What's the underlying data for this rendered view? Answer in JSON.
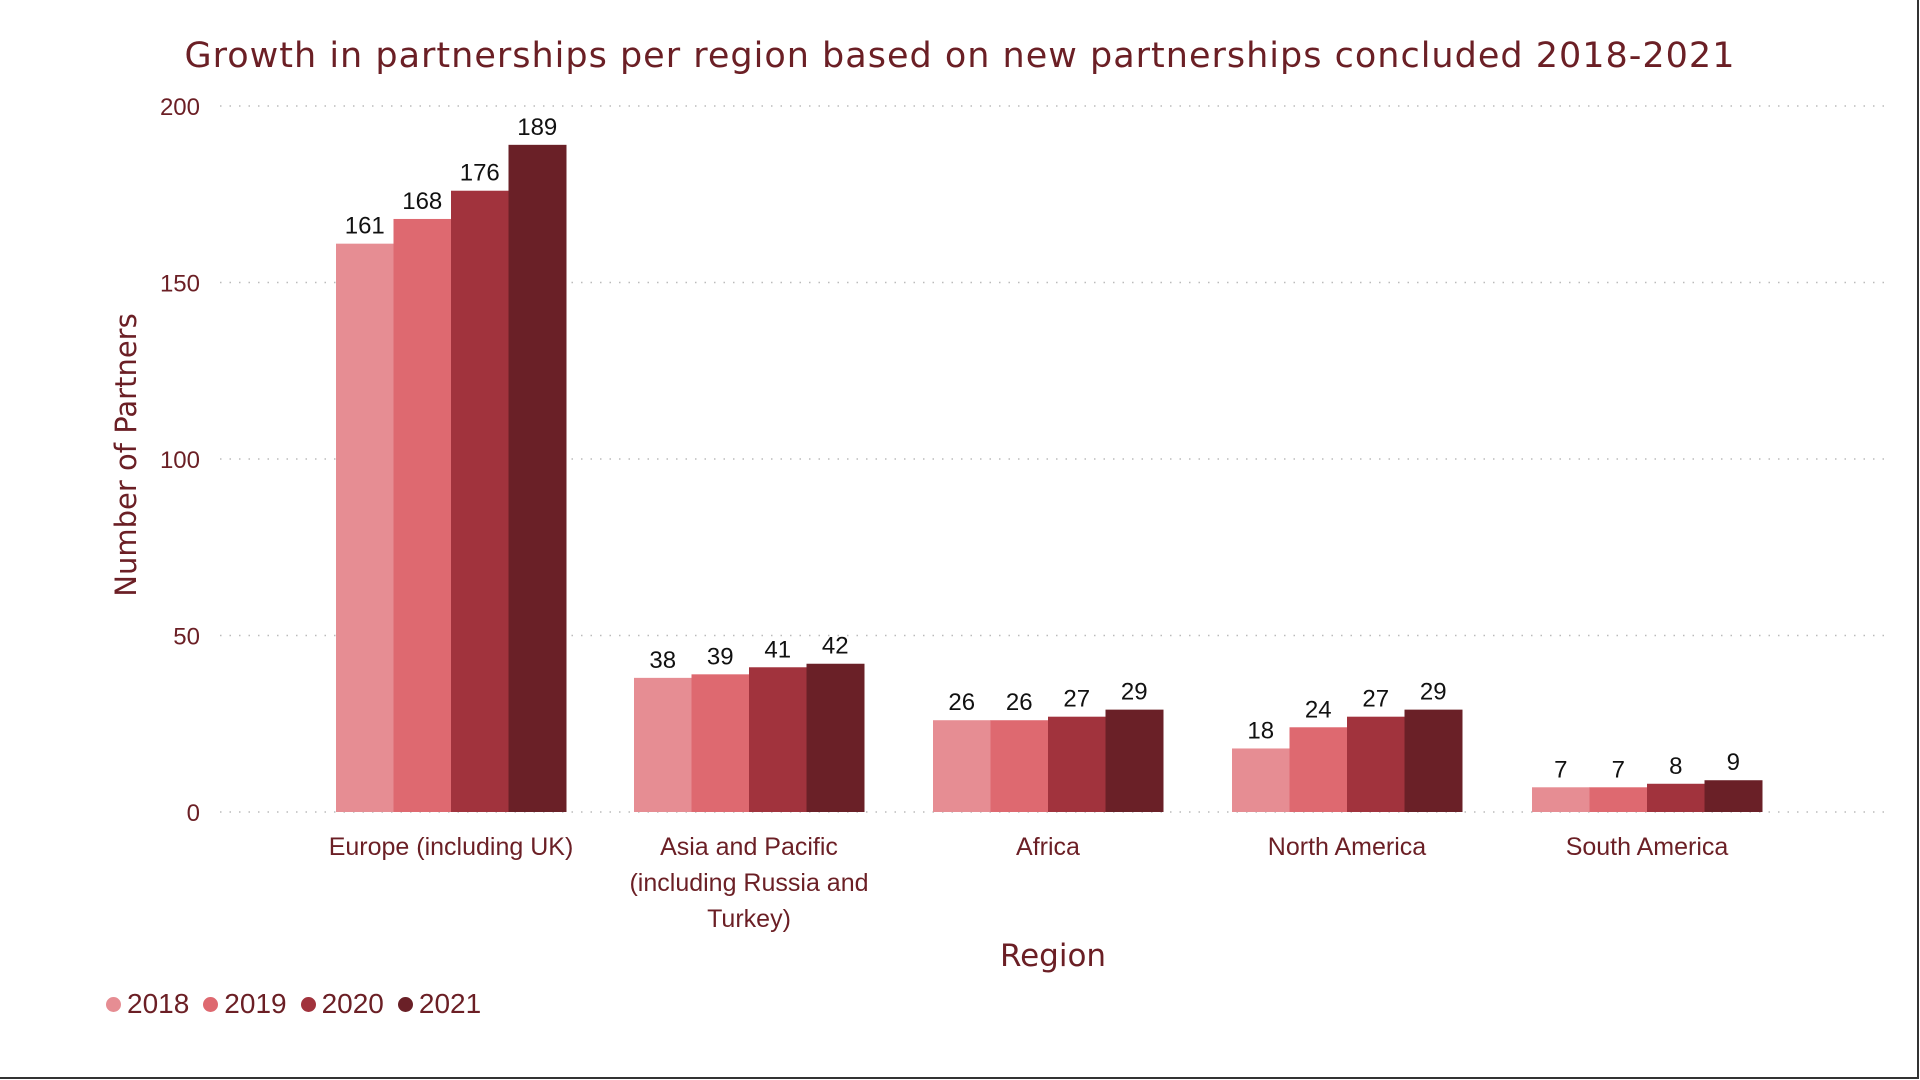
{
  "chart_data": {
    "type": "bar",
    "title": "Growth in partnerships per region based on new partnerships concluded 2018-2021",
    "xlabel": "Region",
    "ylabel": "Number of Partners",
    "ylim": [
      0,
      200
    ],
    "yticks": [
      "0",
      "50",
      "100",
      "150",
      "200"
    ],
    "grid": true,
    "legend_position": "bottom-left",
    "categories": [
      "Europe (including UK)",
      "Asia and Pacific (including Russia and Turkey)",
      "Africa",
      "North America",
      "South America"
    ],
    "series": [
      {
        "name": "2018",
        "color": "#E68D93",
        "values": [
          161,
          38,
          26,
          18,
          7
        ]
      },
      {
        "name": "2019",
        "color": "#DE6970",
        "values": [
          168,
          39,
          26,
          24,
          7
        ]
      },
      {
        "name": "2020",
        "color": "#A1333D",
        "values": [
          176,
          41,
          27,
          27,
          8
        ]
      },
      {
        "name": "2021",
        "color": "#6A2027",
        "values": [
          189,
          42,
          29,
          29,
          9
        ]
      }
    ]
  }
}
